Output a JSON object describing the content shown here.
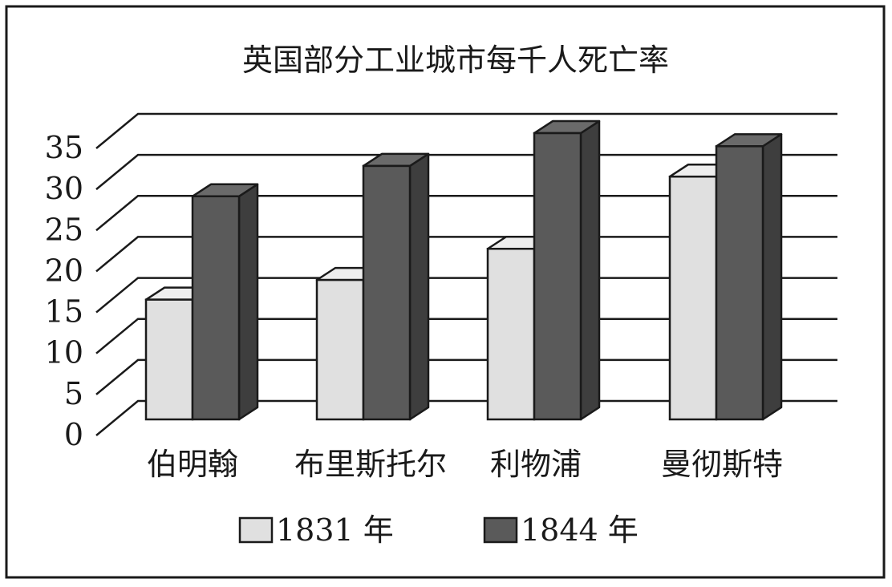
{
  "chart_data": {
    "type": "bar",
    "title": "英国部分工业城市每千人死亡率",
    "xlabel": "",
    "ylabel": "",
    "ylim": [
      0,
      35
    ],
    "yticks": [
      0,
      5,
      10,
      15,
      20,
      25,
      30,
      35
    ],
    "categories": [
      "伯明翰",
      "布里斯托尔",
      "利物浦",
      "曼彻斯特"
    ],
    "series": [
      {
        "name": "1831 年",
        "values": [
          14.6,
          17.0,
          20.8,
          29.6
        ],
        "color": "#e0e0e0"
      },
      {
        "name": "1844 年",
        "values": [
          27.2,
          30.9,
          34.9,
          33.3
        ],
        "color": "#5a5a5a"
      }
    ],
    "grid": true,
    "legend_position": "bottom"
  }
}
